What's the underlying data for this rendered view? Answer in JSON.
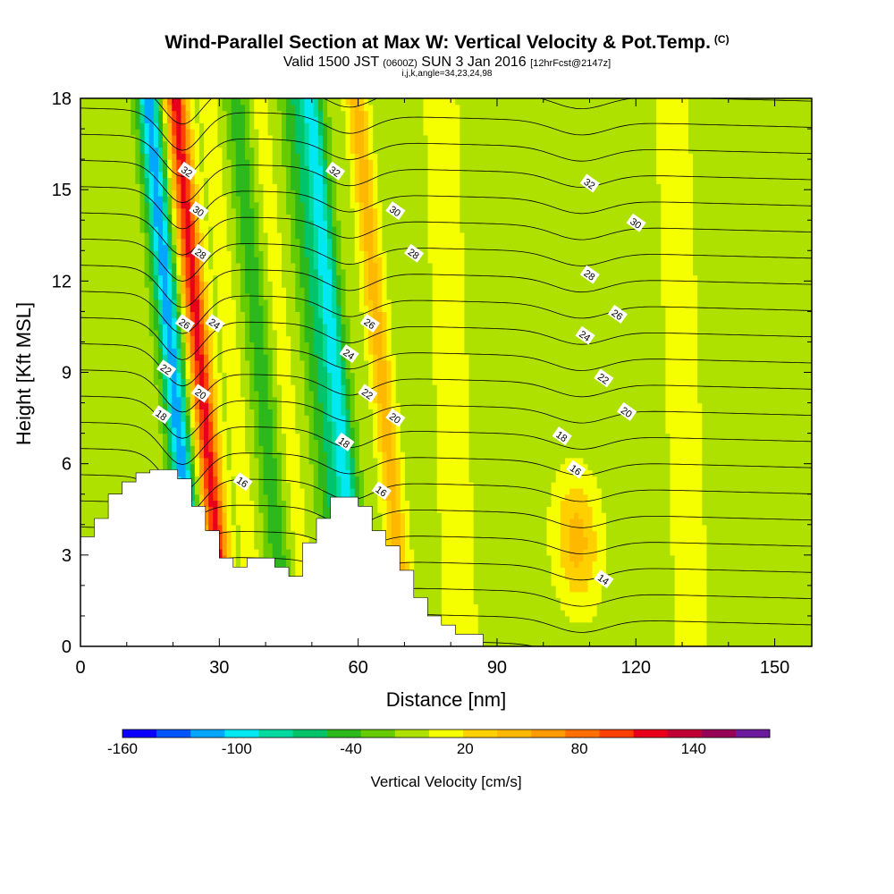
{
  "header": {
    "title": "Wind-Parallel Section at Max W: Vertical Velocity & Pot.Temp.",
    "title_tag": "(C)",
    "valid_prefix": "Valid 1500 JST",
    "valid_utc": "(0600Z)",
    "valid_date": "SUN 3 Jan 2016",
    "forecast": "[12hrFcst@2147z]",
    "indices": "i,j,k,angle=34,23,24,98"
  },
  "chart_data": {
    "type": "heatmap",
    "xlabel": "Distance [nm]",
    "ylabel": "Height [Kft MSL]",
    "xlim": [
      0,
      158
    ],
    "ylim": [
      0,
      18
    ],
    "x_ticks": [
      0,
      30,
      60,
      90,
      120,
      150
    ],
    "y_ticks": [
      0,
      3,
      6,
      9,
      12,
      15,
      18
    ],
    "x_tick_labels": [
      "0",
      "30",
      "60",
      "90",
      "120",
      "150"
    ],
    "y_tick_labels": [
      "0",
      "3",
      "6",
      "9",
      "12",
      "15",
      "18"
    ],
    "colorbar": {
      "title": "Vertical Velocity [cm/s]",
      "tick_labels": [
        "-160",
        "-100",
        "-40",
        "20",
        "80",
        "140"
      ],
      "tick_values": [
        -160,
        -100,
        -40,
        20,
        80,
        140
      ],
      "range": [
        -160,
        180
      ],
      "bin_width": 20,
      "colors": [
        "#0a00ff",
        "#0055ff",
        "#00a6ff",
        "#00e8f0",
        "#00d9a0",
        "#00c46a",
        "#2db81c",
        "#66cc00",
        "#aee000",
        "#f5ff00",
        "#ffd000",
        "#ffb800",
        "#ff9a00",
        "#ff7000",
        "#ff4000",
        "#e8001a",
        "#c00033",
        "#960055",
        "#6a1a9a"
      ]
    },
    "velocity_features": [
      {
        "x": 20,
        "value": -120
      },
      {
        "x": 26,
        "value": 140
      },
      {
        "x": 33,
        "value": 20
      },
      {
        "x": 39,
        "value": -40
      },
      {
        "x": 44,
        "value": 20
      },
      {
        "x": 51,
        "value": -40
      },
      {
        "x": 55,
        "value": -100
      },
      {
        "x": 65,
        "value": 60
      },
      {
        "x": 80,
        "value": 20
      },
      {
        "x": 106,
        "value": 60
      },
      {
        "x": 130,
        "value": 20
      }
    ],
    "isentrope_labels": [
      {
        "value": "32",
        "x": 23,
        "y": 15.6
      },
      {
        "value": "30",
        "x": 25.5,
        "y": 14.3
      },
      {
        "value": "28",
        "x": 26,
        "y": 12.9
      },
      {
        "value": "26",
        "x": 22.5,
        "y": 10.6
      },
      {
        "value": "24",
        "x": 29,
        "y": 10.6
      },
      {
        "value": "22",
        "x": 18.5,
        "y": 9.1
      },
      {
        "value": "20",
        "x": 26,
        "y": 8.3
      },
      {
        "value": "18",
        "x": 17.5,
        "y": 7.6
      },
      {
        "value": "16",
        "x": 35,
        "y": 5.4
      },
      {
        "value": "32",
        "x": 55,
        "y": 15.6
      },
      {
        "value": "30",
        "x": 68,
        "y": 14.3
      },
      {
        "value": "28",
        "x": 72,
        "y": 12.9
      },
      {
        "value": "26",
        "x": 62.5,
        "y": 10.6
      },
      {
        "value": "24",
        "x": 58,
        "y": 9.6
      },
      {
        "value": "22",
        "x": 62,
        "y": 8.3
      },
      {
        "value": "20",
        "x": 68,
        "y": 7.5
      },
      {
        "value": "18",
        "x": 57,
        "y": 6.7
      },
      {
        "value": "16",
        "x": 65,
        "y": 5.1
      },
      {
        "value": "32",
        "x": 110,
        "y": 15.2
      },
      {
        "value": "30",
        "x": 120,
        "y": 13.9
      },
      {
        "value": "28",
        "x": 110,
        "y": 12.2
      },
      {
        "value": "26",
        "x": 116,
        "y": 10.9
      },
      {
        "value": "24",
        "x": 109,
        "y": 10.2
      },
      {
        "value": "22",
        "x": 113,
        "y": 8.8
      },
      {
        "value": "20",
        "x": 118,
        "y": 7.7
      },
      {
        "value": "18",
        "x": 104,
        "y": 6.9
      },
      {
        "value": "16",
        "x": 107,
        "y": 5.8
      },
      {
        "value": "14",
        "x": 113,
        "y": 2.2
      }
    ],
    "terrain": [
      [
        0,
        3.6
      ],
      [
        3,
        4.2
      ],
      [
        6,
        5.0
      ],
      [
        9,
        5.4
      ],
      [
        12,
        5.7
      ],
      [
        15,
        5.8
      ],
      [
        18,
        5.8
      ],
      [
        21,
        5.5
      ],
      [
        24,
        4.6
      ],
      [
        27,
        3.8
      ],
      [
        30,
        2.9
      ],
      [
        33,
        2.6
      ],
      [
        36,
        2.9
      ],
      [
        39,
        2.9
      ],
      [
        42,
        2.6
      ],
      [
        45,
        2.3
      ],
      [
        48,
        3.4
      ],
      [
        51,
        4.2
      ],
      [
        54,
        4.9
      ],
      [
        57,
        4.9
      ],
      [
        60,
        4.6
      ],
      [
        63,
        3.8
      ],
      [
        66,
        3.3
      ],
      [
        69,
        2.5
      ],
      [
        72,
        1.6
      ],
      [
        75,
        1.0
      ],
      [
        78,
        0.7
      ],
      [
        81,
        0.4
      ],
      [
        84,
        0.4
      ],
      [
        87,
        0.0
      ],
      [
        158,
        0.0
      ]
    ]
  }
}
